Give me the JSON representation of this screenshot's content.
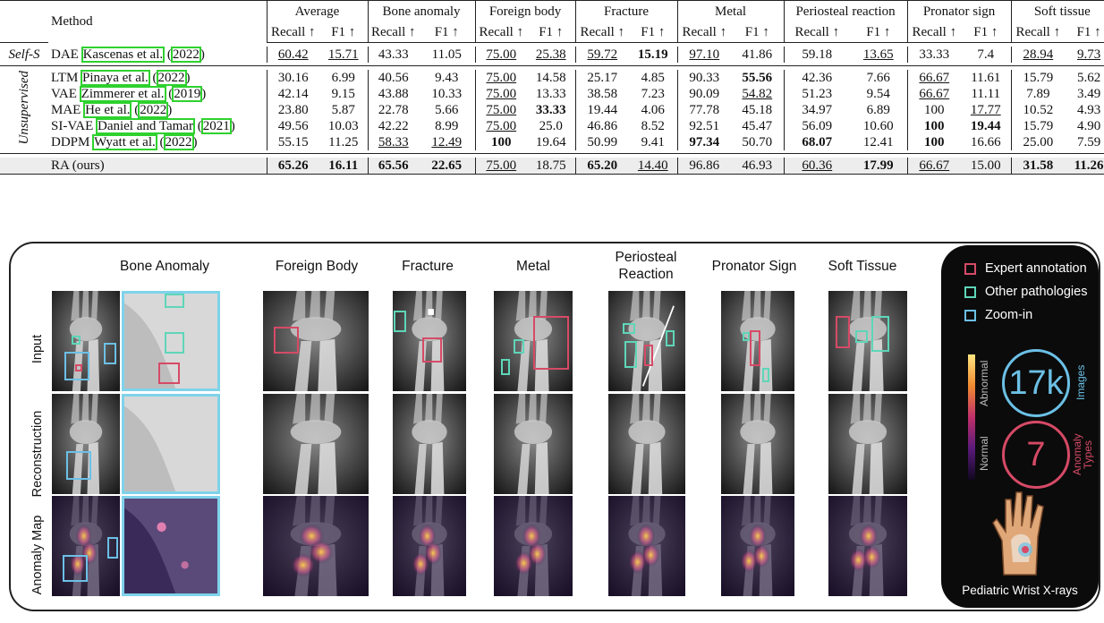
{
  "table": {
    "method_header": "Method",
    "groups": [
      "Average",
      "Bone anomaly",
      "Foreign body",
      "Fracture",
      "Metal",
      "Periosteal reaction",
      "Pronator sign",
      "Soft tissue"
    ],
    "subheaders": [
      "Recall ↑",
      "F1 ↑"
    ],
    "group_labels": {
      "self": "Self-S",
      "unsup": "Unsupervised"
    },
    "rows": [
      {
        "method": "DAE",
        "author": "Kascenas et al.",
        "year": "2022",
        "vals": [
          "60.42",
          "15.71",
          "43.33",
          "11.05",
          "75.00",
          "25.38",
          "59.72",
          "15.19",
          "97.10",
          "41.86",
          "59.18",
          "13.65",
          "33.33",
          "7.4",
          "28.94",
          "9.73"
        ]
      },
      {
        "method": "LTM",
        "author": "Pinaya et al.",
        "year": "2022",
        "vals": [
          "30.16",
          "6.99",
          "40.56",
          "9.43",
          "75.00",
          "14.58",
          "25.17",
          "4.85",
          "90.33",
          "55.56",
          "42.36",
          "7.66",
          "66.67",
          "11.61",
          "15.79",
          "5.62"
        ]
      },
      {
        "method": "VAE",
        "author": "Zimmerer et al.",
        "year": "2019",
        "vals": [
          "42.14",
          "9.15",
          "43.88",
          "10.33",
          "75.00",
          "13.33",
          "38.58",
          "7.23",
          "90.09",
          "54.82",
          "51.23",
          "9.54",
          "66.67",
          "11.11",
          "7.89",
          "3.49"
        ]
      },
      {
        "method": "MAE",
        "author": "He et al.",
        "year": "2022",
        "vals": [
          "23.80",
          "5.87",
          "22.78",
          "5.66",
          "75.00",
          "33.33",
          "19.44",
          "4.06",
          "77.78",
          "45.18",
          "34.97",
          "6.89",
          "100",
          "17.77",
          "10.52",
          "4.93"
        ]
      },
      {
        "method": "SI-VAE",
        "author": "Daniel and Tamar",
        "year": "2021",
        "vals": [
          "49.56",
          "10.03",
          "42.22",
          "8.99",
          "75.00",
          "25.0",
          "46.86",
          "8.52",
          "92.51",
          "45.47",
          "56.09",
          "10.60",
          "100",
          "19.44",
          "15.79",
          "4.90"
        ]
      },
      {
        "method": "DDPM",
        "author": "Wyatt et al.",
        "year": "2022",
        "vals": [
          "55.15",
          "11.25",
          "58.33",
          "12.49",
          "100",
          "19.64",
          "50.99",
          "9.41",
          "97.34",
          "50.70",
          "68.07",
          "12.41",
          "100",
          "16.66",
          "25.00",
          "7.59"
        ]
      },
      {
        "method": "RA (ours)",
        "author": "",
        "year": "",
        "vals": [
          "65.26",
          "16.11",
          "65.56",
          "22.65",
          "75.00",
          "18.75",
          "65.20",
          "14.40",
          "96.86",
          "46.93",
          "60.36",
          "17.99",
          "66.67",
          "15.00",
          "31.58",
          "11.26"
        ]
      }
    ]
  },
  "figure": {
    "columns": [
      "Bone Anomaly",
      "Foreign Body",
      "Fracture",
      "Metal",
      "Periosteal Reaction",
      "Pronator Sign",
      "Soft Tissue"
    ],
    "rows": [
      "Input",
      "Reconstruction",
      "Anomaly Map"
    ],
    "legend": {
      "items": [
        "Expert annotation",
        "Other pathologies",
        "Zoom-in"
      ],
      "colors": {
        "expert": "#d64a66",
        "other": "#5ed6b8",
        "zoom": "#6cc0e6"
      },
      "colorbar_top": "Abnormal",
      "colorbar_bottom": "Normal",
      "images_count": "17k",
      "images_label": "Images",
      "types_count": "7",
      "types_label": "Anomaly Types",
      "footer": "Pediatric Wrist X-rays"
    }
  }
}
